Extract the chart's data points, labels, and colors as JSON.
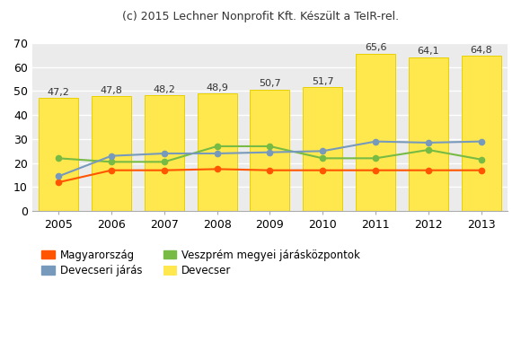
{
  "title": "(c) 2015 Lechner Nonprofit Kft. Készült a TeIR-rel.",
  "years": [
    2005,
    2006,
    2007,
    2008,
    2009,
    2010,
    2011,
    2012,
    2013
  ],
  "devecser_bars": [
    47.2,
    47.8,
    48.2,
    48.9,
    50.7,
    51.7,
    65.6,
    64.1,
    64.8
  ],
  "magyarorszag": [
    12.0,
    17.0,
    17.0,
    17.5,
    17.0,
    17.0,
    17.0,
    17.0,
    17.0
  ],
  "veszprem": [
    22.0,
    20.5,
    20.5,
    27.0,
    27.0,
    22.0,
    22.0,
    25.5,
    21.5
  ],
  "devecseri_jaras": [
    14.5,
    23.0,
    24.0,
    24.0,
    24.5,
    25.0,
    29.0,
    28.5,
    29.0
  ],
  "bar_color": "#FFE84D",
  "bar_edge_color": "#E8D000",
  "magyarorszag_color": "#FF5500",
  "veszprem_color": "#77BB44",
  "devecseri_jaras_color": "#7799BB",
  "plot_bg_color": "#EBEBEB",
  "grid_color": "#FFFFFF",
  "ylim": [
    0,
    70
  ],
  "yticks": [
    0,
    10,
    20,
    30,
    40,
    50,
    60,
    70
  ],
  "legend_labels": [
    "Magyarország",
    "Veszprém megyei járásközpontok",
    "Devecseri járás",
    "Devecser"
  ],
  "bar_label_fontsize": 8,
  "bar_width": 0.75,
  "title_fontsize": 9,
  "tick_fontsize": 9
}
